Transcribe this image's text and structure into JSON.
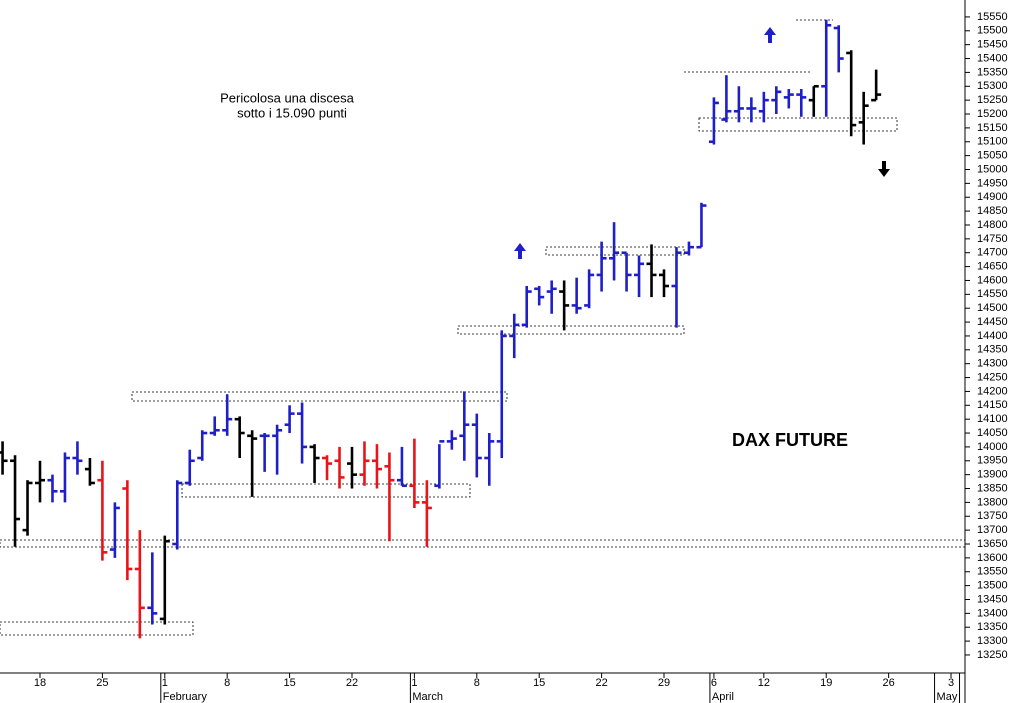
{
  "chart_data": {
    "type": "ohlc",
    "title": "DAX FUTURE",
    "annotations": [
      "Pericolosa una discesa",
      "sotto i 15.090 punti"
    ],
    "categories": [
      null,
      null,
      null,
      "18",
      null,
      null,
      null,
      null,
      "25",
      null,
      null,
      null,
      null,
      "1",
      null,
      null,
      null,
      null,
      "8",
      null,
      null,
      null,
      null,
      "15",
      null,
      null,
      null,
      null,
      "22",
      null,
      null,
      null,
      null,
      "1",
      null,
      null,
      null,
      null,
      "8",
      null,
      null,
      null,
      null,
      "15",
      null,
      null,
      null,
      null,
      "22",
      null,
      null,
      null,
      null,
      "29",
      null,
      null,
      null,
      "6",
      null,
      null,
      null,
      "12",
      null,
      null,
      null,
      null,
      "19",
      null,
      null,
      null,
      null,
      "26",
      null,
      null,
      null,
      null,
      "3",
      null
    ],
    "months": [
      null,
      null,
      null,
      null,
      null,
      null,
      null,
      null,
      null,
      null,
      null,
      null,
      null,
      "February",
      null,
      null,
      null,
      null,
      null,
      null,
      null,
      null,
      null,
      null,
      null,
      null,
      null,
      null,
      null,
      null,
      null,
      null,
      null,
      "March",
      null,
      null,
      null,
      null,
      null,
      null,
      null,
      null,
      null,
      null,
      null,
      null,
      null,
      null,
      null,
      null,
      null,
      null,
      null,
      null,
      null,
      null,
      null,
      "April",
      null,
      null,
      null,
      null,
      null,
      null,
      null,
      null,
      null,
      null,
      null,
      null,
      null,
      null,
      null,
      null,
      null,
      "May",
      null
    ],
    "open": [
      13980,
      13950,
      13700,
      13870,
      13880,
      13840,
      13960,
      13920,
      13880,
      13630,
      13850,
      13560,
      13420,
      13380,
      13650,
      13870,
      13960,
      14050,
      14060,
      14100,
      14040,
      14040,
      14040,
      14080,
      14120,
      14000,
      13960,
      13950,
      13940,
      13900,
      13950,
      13930,
      13880,
      13860,
      13800,
      13860,
      14020,
      14040,
      14080,
      13960,
      14020,
      14400,
      14440,
      14570,
      14560,
      14560,
      14510,
      14510,
      14620,
      14680,
      14700,
      14620,
      14660,
      14620,
      14580,
      14700,
      14720,
      15100,
      15180,
      15210,
      15220,
      15210,
      15250,
      15260,
      15270,
      15250,
      15300,
      15510,
      15420,
      15170,
      15250,
      null,
      null,
      null,
      null,
      null,
      null,
      null
    ],
    "high": [
      14020,
      13970,
      13880,
      13950,
      13900,
      13980,
      14020,
      13960,
      13950,
      13800,
      13880,
      13700,
      13620,
      13680,
      13880,
      13990,
      14060,
      14110,
      14190,
      14110,
      14060,
      14050,
      14080,
      14150,
      14160,
      14010,
      13970,
      14000,
      14000,
      14020,
      14010,
      13980,
      14000,
      14030,
      13880,
      14010,
      14060,
      14200,
      14120,
      14050,
      14420,
      14480,
      14580,
      14580,
      14600,
      14600,
      14610,
      14640,
      14740,
      14810,
      14700,
      14690,
      14730,
      14640,
      14720,
      14740,
      14880,
      15260,
      15340,
      15300,
      15260,
      15280,
      15300,
      15290,
      15290,
      15300,
      15540,
      15520,
      15430,
      15280,
      15360,
      null,
      null,
      null,
      null,
      null,
      null,
      null
    ],
    "low": [
      13900,
      13640,
      13680,
      13800,
      13800,
      13800,
      13900,
      13860,
      13590,
      13600,
      13520,
      13310,
      13360,
      13360,
      13630,
      13860,
      13950,
      14040,
      14040,
      13960,
      13820,
      13910,
      13900,
      14050,
      13940,
      13870,
      13880,
      13850,
      13850,
      13860,
      13850,
      13660,
      13860,
      13780,
      13640,
      13850,
      13990,
      13950,
      13890,
      13860,
      13960,
      14320,
      14430,
      14510,
      14480,
      14420,
      14480,
      14500,
      14560,
      14600,
      14560,
      14540,
      14540,
      14540,
      14430,
      14690,
      14720,
      15090,
      15170,
      15170,
      15170,
      15170,
      15200,
      15220,
      15190,
      15190,
      15190,
      15350,
      15120,
      15090,
      15250,
      null,
      null,
      null,
      null,
      null,
      null,
      null
    ],
    "close": [
      13950,
      13740,
      13870,
      13880,
      13840,
      13960,
      13950,
      13870,
      13620,
      13780,
      13560,
      13420,
      13400,
      13660,
      13870,
      13950,
      14050,
      14060,
      14100,
      14050,
      14030,
      14040,
      14060,
      14120,
      14000,
      13960,
      13940,
      13890,
      13900,
      13950,
      13920,
      13880,
      13860,
      13800,
      13780,
      14020,
      14030,
      14080,
      13960,
      14020,
      14400,
      14440,
      14560,
      14540,
      14570,
      14510,
      14500,
      14620,
      14680,
      14700,
      14620,
      14660,
      14620,
      14580,
      14700,
      14720,
      14870,
      15240,
      15210,
      15220,
      15220,
      15250,
      15280,
      15270,
      15260,
      15300,
      15520,
      15400,
      15160,
      15230,
      15270,
      null,
      null,
      null,
      null,
      null,
      null,
      null
    ],
    "colors": [
      "#000",
      "#000",
      "#000",
      "#000",
      "#1f1fc8",
      "#1f1fc8",
      "#1f1fc8",
      "#000",
      "#e8141a",
      "#1f1fc8",
      "#e8141a",
      "#e8141a",
      "#1f1fc8",
      "#000",
      "#1f1fc8",
      "#1f1fc8",
      "#1f1fc8",
      "#1f1fc8",
      "#1f1fc8",
      "#000",
      "#000",
      "#1f1fc8",
      "#1f1fc8",
      "#1f1fc8",
      "#1f1fc8",
      "#000",
      "#e8141a",
      "#e8141a",
      "#000",
      "#e8141a",
      "#e8141a",
      "#e8141a",
      "#1f1fc8",
      "#e8141a",
      "#e8141a",
      "#1f1fc8",
      "#1f1fc8",
      "#1f1fc8",
      "#1f1fc8",
      "#1f1fc8",
      "#1f1fc8",
      "#1f1fc8",
      "#1f1fc8",
      "#1f1fc8",
      "#1f1fc8",
      "#000",
      "#1f1fc8",
      "#1f1fc8",
      "#1f1fc8",
      "#1f1fc8",
      "#1f1fc8",
      "#1f1fc8",
      "#000",
      "#000",
      "#1f1fc8",
      "#1f1fc8",
      "#1f1fc8",
      "#1f1fc8",
      "#1f1fc8",
      "#1f1fc8",
      "#1f1fc8",
      "#1f1fc8",
      "#1f1fc8",
      "#1f1fc8",
      "#1f1fc8",
      "#000",
      "#1f1fc8",
      "#1f1fc8",
      "#000",
      "#000",
      "#000",
      null,
      null,
      null,
      null,
      null,
      null,
      null
    ],
    "ylim": [
      13185,
      15611
    ],
    "yticks": [
      13250,
      13300,
      13350,
      13400,
      13450,
      13500,
      13550,
      13600,
      13650,
      13700,
      13750,
      13800,
      13850,
      13900,
      13950,
      14000,
      14050,
      14100,
      14150,
      14200,
      14250,
      14300,
      14350,
      14400,
      14450,
      14500,
      14550,
      14600,
      14650,
      14700,
      14750,
      14800,
      14850,
      14900,
      14950,
      15000,
      15050,
      15100,
      15150,
      15200,
      15250,
      15300,
      15350,
      15400,
      15450,
      15500,
      15550
    ]
  }
}
